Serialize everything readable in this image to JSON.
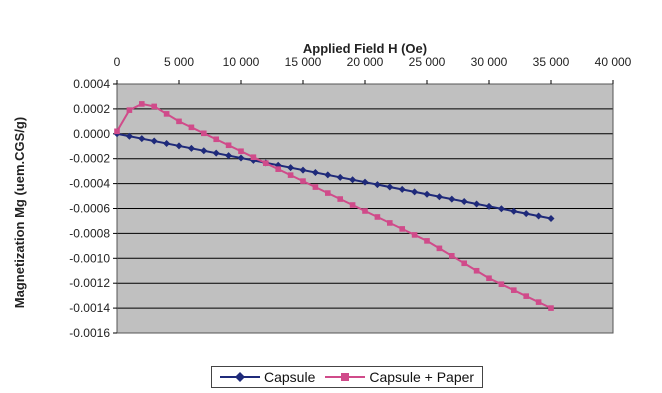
{
  "chart_data": {
    "type": "line",
    "title": "",
    "xlabel": "Applied Field H (Oe)",
    "ylabel": "Magnetization Mg (uem.CGS/g)",
    "x_axis_position": "top",
    "xlim": [
      0,
      40000
    ],
    "ylim": [
      -0.0016,
      0.0004
    ],
    "xticks": [
      0,
      5000,
      10000,
      15000,
      20000,
      25000,
      30000,
      35000,
      40000
    ],
    "xtick_labels": [
      "0",
      "5 000",
      "10 000",
      "15 000",
      "20 000",
      "25 000",
      "30 000",
      "35 000",
      "40 000"
    ],
    "yticks": [
      0.0004,
      0.0002,
      0.0,
      -0.0002,
      -0.0004,
      -0.0006,
      -0.0008,
      -0.001,
      -0.0012,
      -0.0014,
      -0.0016
    ],
    "ytick_labels": [
      "0.0004",
      "0.0002",
      "0.0000",
      "-0.0002",
      "-0.0004",
      "-0.0006",
      "-0.0008",
      "-0.0010",
      "-0.0012",
      "-0.0014",
      "-0.0016"
    ],
    "grid": true,
    "legend_placement": "bottom",
    "series": [
      {
        "name": "Capsule",
        "color": "#1f2a7a",
        "marker": "diamond",
        "x": [
          0,
          35000
        ],
        "y": [
          0.0,
          -0.00068
        ]
      },
      {
        "name": "Capsule + Paper",
        "color": "#d04b8a",
        "marker": "square",
        "x": [
          0,
          1000,
          2000,
          3000,
          5000,
          10000,
          15000,
          20000,
          25000,
          30000,
          35000
        ],
        "y": [
          2e-05,
          0.00019,
          0.00024,
          0.00022,
          0.0001,
          -0.00014,
          -0.00038,
          -0.00062,
          -0.00086,
          -0.00116,
          -0.0014
        ]
      }
    ]
  },
  "colors": {
    "plot_bg": "#c0c0c0",
    "gridline": "#000000",
    "capsule": "#1f2a7a",
    "capsule_paper": "#d04b8a"
  }
}
